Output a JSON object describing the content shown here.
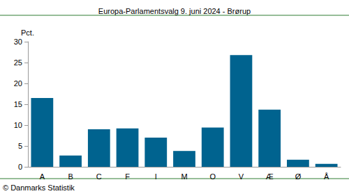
{
  "chart_data": {
    "type": "bar",
    "title": "Europa-Parlamentsvalg 9. juni 2024 - Brørup",
    "y_label": "Pct.",
    "source": "© Danmarks Statistik",
    "categories": [
      "A",
      "B",
      "C",
      "F",
      "I",
      "M",
      "O",
      "V",
      "Æ",
      "Ø",
      "Å"
    ],
    "values": [
      16.5,
      2.7,
      9.0,
      9.2,
      7.0,
      3.8,
      9.4,
      26.8,
      13.7,
      1.7,
      0.7
    ],
    "color": "#00638f",
    "ylim": [
      0,
      30
    ],
    "yticks": [
      0,
      5,
      10,
      15,
      20,
      25,
      30
    ],
    "grid": false
  }
}
